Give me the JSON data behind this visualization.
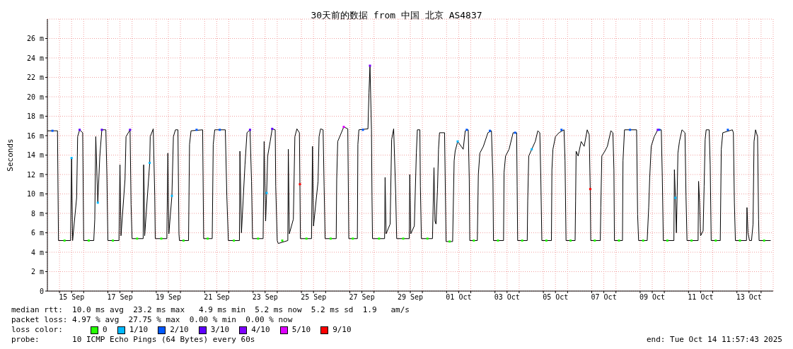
{
  "chart_data": {
    "type": "line",
    "title": "30天前的数据 from 中国 北京 AS4837",
    "ylabel": "Seconds",
    "legend_title": "loss color:",
    "legend": "bottom left",
    "grid": true,
    "xlim": [
      "2025-09-14T12:00",
      "2025-10-14T12:00"
    ],
    "xticks": [
      {
        "value": "2025-09-15T00:00",
        "label": null
      },
      {
        "value": "2025-09-15T12:00",
        "label": "15 Sep"
      },
      {
        "value": "2025-09-16T00:00",
        "label": null
      },
      {
        "value": "2025-09-17T00:00",
        "label": null
      },
      {
        "value": "2025-09-17T12:00",
        "label": "17 Sep"
      },
      {
        "value": "2025-09-18T00:00",
        "label": null
      },
      {
        "value": "2025-09-19T00:00",
        "label": null
      },
      {
        "value": "2025-09-19T12:00",
        "label": "19 Sep"
      },
      {
        "value": "2025-09-20T00:00",
        "label": null
      },
      {
        "value": "2025-09-21T00:00",
        "label": null
      },
      {
        "value": "2025-09-21T12:00",
        "label": "21 Sep"
      },
      {
        "value": "2025-09-22T00:00",
        "label": null
      },
      {
        "value": "2025-09-23T00:00",
        "label": null
      },
      {
        "value": "2025-09-23T12:00",
        "label": "23 Sep"
      },
      {
        "value": "2025-09-24T00:00",
        "label": null
      },
      {
        "value": "2025-09-25T00:00",
        "label": null
      },
      {
        "value": "2025-09-25T12:00",
        "label": "25 Sep"
      },
      {
        "value": "2025-09-26T00:00",
        "label": null
      },
      {
        "value": "2025-09-27T00:00",
        "label": null
      },
      {
        "value": "2025-09-27T12:00",
        "label": "27 Sep"
      },
      {
        "value": "2025-09-28T00:00",
        "label": null
      },
      {
        "value": "2025-09-29T00:00",
        "label": null
      },
      {
        "value": "2025-09-29T12:00",
        "label": "29 Sep"
      },
      {
        "value": "2025-09-30T00:00",
        "label": null
      },
      {
        "value": "2025-10-01T00:00",
        "label": null
      },
      {
        "value": "2025-10-01T12:00",
        "label": "01 Oct"
      },
      {
        "value": "2025-10-02T00:00",
        "label": null
      },
      {
        "value": "2025-10-03T00:00",
        "label": null
      },
      {
        "value": "2025-10-03T12:00",
        "label": "03 Oct"
      },
      {
        "value": "2025-10-04T00:00",
        "label": null
      },
      {
        "value": "2025-10-05T00:00",
        "label": null
      },
      {
        "value": "2025-10-05T12:00",
        "label": "05 Oct"
      },
      {
        "value": "2025-10-06T00:00",
        "label": null
      },
      {
        "value": "2025-10-07T00:00",
        "label": null
      },
      {
        "value": "2025-10-07T12:00",
        "label": "07 Oct"
      },
      {
        "value": "2025-10-08T00:00",
        "label": null
      },
      {
        "value": "2025-10-09T00:00",
        "label": null
      },
      {
        "value": "2025-10-09T12:00",
        "label": "09 Oct"
      },
      {
        "value": "2025-10-10T00:00",
        "label": null
      },
      {
        "value": "2025-10-11T00:00",
        "label": null
      },
      {
        "value": "2025-10-11T12:00",
        "label": "11 Oct"
      },
      {
        "value": "2025-10-12T00:00",
        "label": null
      },
      {
        "value": "2025-10-13T00:00",
        "label": null
      },
      {
        "value": "2025-10-13T12:00",
        "label": "13 Oct"
      },
      {
        "value": "2025-10-14T00:00",
        "label": null
      }
    ],
    "ylim": [
      0,
      28
    ],
    "yticks": [
      0,
      {
        "value": 2,
        "label": "2 m"
      },
      {
        "value": 4,
        "label": "4 m"
      },
      {
        "value": 6,
        "label": "6 m"
      },
      {
        "value": 8,
        "label": "8 m"
      },
      {
        "value": 10,
        "label": "10 m"
      },
      {
        "value": 12,
        "label": "12 m"
      },
      {
        "value": 14,
        "label": "14 m"
      },
      {
        "value": 16,
        "label": "16 m"
      },
      {
        "value": 18,
        "label": "18 m"
      },
      {
        "value": 20,
        "label": "20 m"
      },
      {
        "value": 22,
        "label": "22 m"
      },
      {
        "value": 24,
        "label": "24 m"
      },
      {
        "value": 26,
        "label": "26 m"
      }
    ],
    "x": [
      "2025-09-14T12:00",
      "2025-09-14T22:00",
      "2025-09-14T23:00",
      "2025-09-15T11:00",
      "2025-09-15T12:00",
      "2025-09-15T13:00",
      "2025-09-15T17:00",
      "2025-09-15T18:00",
      "2025-09-15T20:00",
      "2025-09-15T23:00",
      "2025-09-16T00:00",
      "2025-09-16T10:00",
      "2025-09-16T11:00",
      "2025-09-16T12:00",
      "2025-09-16T14:00",
      "2025-09-16T16:00",
      "2025-09-16T18:00",
      "2025-09-16T22:00",
      "2025-09-16T23:00",
      "2025-09-17T00:00",
      "2025-09-17T11:00",
      "2025-09-17T12:00",
      "2025-09-17T13:00",
      "2025-09-17T17:00",
      "2025-09-17T18:00",
      "2025-09-17T22:00",
      "2025-09-17T23:00",
      "2025-09-18T00:00",
      "2025-09-18T11:00",
      "2025-09-18T11:30",
      "2025-09-18T12:00",
      "2025-09-18T12:30",
      "2025-09-18T17:30",
      "2025-09-18T18:00",
      "2025-09-18T21:00",
      "2025-09-18T22:30",
      "2025-09-18T23:00",
      "2025-09-19T10:30",
      "2025-09-19T11:30",
      "2025-09-19T12:30",
      "2025-09-19T15:30",
      "2025-09-19T17:00",
      "2025-09-19T19:00",
      "2025-09-19T21:30",
      "2025-09-19T22:30",
      "2025-09-19T23:00",
      "2025-09-20T08:00",
      "2025-09-20T09:00",
      "2025-09-20T10:30",
      "2025-09-20T22:00",
      "2025-09-20T23:00",
      "2025-09-21T07:30",
      "2025-09-21T08:30",
      "2025-09-21T10:00",
      "2025-09-21T20:30",
      "2025-09-21T22:00",
      "2025-09-21T23:30",
      "2025-09-22T10:30",
      "2025-09-22T11:00",
      "2025-09-22T12:30",
      "2025-09-22T16:00",
      "2025-09-22T18:00",
      "2025-09-22T21:00",
      "2025-09-22T22:30",
      "2025-09-22T23:30",
      "2025-09-23T10:00",
      "2025-09-23T11:00",
      "2025-09-23T12:30",
      "2025-09-23T13:30",
      "2025-09-23T14:30",
      "2025-09-23T17:00",
      "2025-09-23T19:00",
      "2025-09-23T22:00",
      "2025-09-23T22:30",
      "2025-09-24T00:00",
      "2025-09-24T01:00",
      "2025-09-24T10:30",
      "2025-09-24T11:00",
      "2025-09-24T12:00",
      "2025-09-24T16:00",
      "2025-09-24T17:30",
      "2025-09-24T19:30",
      "2025-09-24T22:00",
      "2025-09-24T22:30",
      "2025-09-24T23:00",
      "2025-09-25T10:00",
      "2025-09-25T11:00",
      "2025-09-25T12:00",
      "2025-09-25T16:30",
      "2025-09-25T17:30",
      "2025-09-25T19:00",
      "2025-09-25T21:30",
      "2025-09-25T22:30",
      "2025-09-25T23:30",
      "2025-09-26T10:30",
      "2025-09-26T11:00",
      "2025-09-26T12:00",
      "2025-09-26T18:00",
      "2025-09-26T22:00",
      "2025-09-26T23:00",
      "2025-09-27T07:30",
      "2025-09-27T08:00",
      "2025-09-27T09:00",
      "2025-09-27T18:00",
      "2025-09-27T19:00",
      "2025-09-27T20:00",
      "2025-09-27T21:00",
      "2025-09-27T21:30",
      "2025-09-27T22:00",
      "2025-09-27T22:30",
      "2025-09-28T10:30",
      "2025-09-28T11:00",
      "2025-09-28T12:00",
      "2025-09-28T16:00",
      "2025-09-28T17:30",
      "2025-09-28T19:30",
      "2025-09-28T21:30",
      "2025-09-28T22:30",
      "2025-09-29T11:00",
      "2025-09-29T11:30",
      "2025-09-29T12:30",
      "2025-09-29T16:00",
      "2025-09-29T18:00",
      "2025-09-29T19:00",
      "2025-09-29T21:30",
      "2025-09-29T22:00",
      "2025-09-29T23:00",
      "2025-09-30T10:00",
      "2025-09-30T11:30",
      "2025-09-30T12:30",
      "2025-09-30T13:30",
      "2025-09-30T15:00",
      "2025-09-30T16:00",
      "2025-09-30T17:00",
      "2025-09-30T22:00",
      "2025-09-30T23:30",
      "2025-10-01T06:00",
      "2025-10-01T07:30",
      "2025-10-01T08:30",
      "2025-10-01T11:00",
      "2025-10-01T14:30",
      "2025-10-01T16:30",
      "2025-10-01T18:30",
      "2025-10-01T21:30",
      "2025-10-01T22:30",
      "2025-10-01T23:00",
      "2025-10-02T06:30",
      "2025-10-02T07:30",
      "2025-10-02T09:00",
      "2025-10-02T12:30",
      "2025-10-02T17:00",
      "2025-10-02T20:30",
      "2025-10-02T22:00",
      "2025-10-02T22:30",
      "2025-10-03T08:30",
      "2025-10-03T09:00",
      "2025-10-03T10:30",
      "2025-10-03T14:00",
      "2025-10-03T18:00",
      "2025-10-03T21:30",
      "2025-10-03T22:00",
      "2025-10-03T22:30",
      "2025-10-04T08:00",
      "2025-10-04T08:30",
      "2025-10-04T09:30",
      "2025-10-04T12:30",
      "2025-10-04T16:00",
      "2025-10-04T18:30",
      "2025-10-04T20:30",
      "2025-10-04T21:30",
      "2025-10-04T22:30",
      "2025-10-05T08:00",
      "2025-10-05T08:30",
      "2025-10-05T09:30",
      "2025-10-05T12:00",
      "2025-10-05T15:30",
      "2025-10-05T20:30",
      "2025-10-05T21:30",
      "2025-10-05T22:30",
      "2025-10-06T07:30",
      "2025-10-06T08:00",
      "2025-10-06T08:30",
      "2025-10-06T10:30",
      "2025-10-06T13:30",
      "2025-10-06T16:30",
      "2025-10-06T19:30",
      "2025-10-06T21:30",
      "2025-10-06T22:30",
      "2025-10-06T23:00",
      "2025-10-07T08:30",
      "2025-10-07T09:00",
      "2025-10-07T10:00",
      "2025-10-07T13:00",
      "2025-10-07T15:30",
      "2025-10-07T19:00",
      "2025-10-07T21:00",
      "2025-10-07T22:00",
      "2025-10-07T22:30",
      "2025-10-08T06:30",
      "2025-10-08T07:00",
      "2025-10-08T08:30",
      "2025-10-08T20:30",
      "2025-10-08T21:30",
      "2025-10-08T22:30",
      "2025-10-09T07:00",
      "2025-10-09T08:30",
      "2025-10-09T09:30",
      "2025-10-09T11:00",
      "2025-10-09T14:00",
      "2025-10-09T17:30",
      "2025-10-09T21:00",
      "2025-10-09T22:00",
      "2025-10-09T23:00",
      "2025-10-10T09:30",
      "2025-10-10T10:00",
      "2025-10-10T11:00",
      "2025-10-10T12:00",
      "2025-10-10T13:30",
      "2025-10-10T15:00",
      "2025-10-10T17:30",
      "2025-10-10T20:30",
      "2025-10-10T21:30",
      "2025-10-10T22:30",
      "2025-10-11T09:30",
      "2025-10-11T10:00",
      "2025-10-11T11:00",
      "2025-10-11T12:00",
      "2025-10-11T14:30",
      "2025-10-11T15:30",
      "2025-10-11T16:30",
      "2025-10-11T17:30",
      "2025-10-11T20:30",
      "2025-10-11T21:30",
      "2025-10-11T22:30",
      "2025-10-12T07:30",
      "2025-10-12T08:30",
      "2025-10-12T10:00",
      "2025-10-12T19:30",
      "2025-10-12T20:30",
      "2025-10-12T21:30",
      "2025-10-12T22:30",
      "2025-10-13T09:30",
      "2025-10-13T10:00",
      "2025-10-13T11:00",
      "2025-10-13T12:30",
      "2025-10-13T14:30",
      "2025-10-13T16:00",
      "2025-10-13T17:00",
      "2025-10-13T18:30",
      "2025-10-13T20:30",
      "2025-10-13T21:30",
      "2025-10-13T22:00",
      "2025-10-14T09:30"
    ],
    "series": [
      {
        "color": "#000000",
        "values": [
          16.5,
          16.5,
          5.2,
          5.2,
          13.7,
          5.2,
          9.6,
          15.9,
          16.6,
          16.3,
          5.2,
          5.2,
          7.4,
          15.9,
          9.1,
          13.9,
          16.6,
          16.6,
          12,
          5.2,
          5.2,
          13,
          5.7,
          11.5,
          15.9,
          16.6,
          8.9,
          5.4,
          5.4,
          13,
          10.3,
          5.7,
          13.2,
          15.9,
          16.7,
          9.8,
          5.4,
          5.4,
          14.2,
          5.9,
          9.8,
          15.9,
          16.6,
          16.6,
          5.9,
          5.2,
          5.2,
          15.1,
          16.5,
          16.6,
          5.4,
          5.4,
          15.1,
          16.6,
          16.6,
          9.8,
          5.2,
          5.2,
          14.4,
          6,
          13,
          16.3,
          16.6,
          11.3,
          5.4,
          5.4,
          15.4,
          7.2,
          10.1,
          13.9,
          15.4,
          16.7,
          16.6,
          10.8,
          5.2,
          4.9,
          5.2,
          14.6,
          5.9,
          7.4,
          15.9,
          16.7,
          16.3,
          11,
          5.4,
          5.4,
          14.9,
          6.7,
          11.3,
          15.9,
          16.7,
          16.6,
          10.8,
          5.4,
          5.4,
          11.5,
          15.4,
          16.9,
          16.7,
          5.4,
          5.4,
          15.1,
          16.6,
          16.7,
          20.4,
          23.2,
          18.7,
          16.6,
          9.8,
          5.4,
          5.4,
          11.7,
          5.9,
          6.9,
          15.6,
          16.7,
          10.1,
          5.4,
          5.4,
          12,
          5.9,
          6.7,
          14.2,
          16.6,
          16.6,
          10.8,
          5.4,
          5.4,
          12.7,
          7.2,
          6.9,
          10.5,
          14.6,
          16.3,
          16.3,
          5.1,
          5.1,
          13.4,
          14.4,
          15.4,
          14.9,
          14.6,
          16.5,
          16.6,
          11.5,
          5.2,
          5.2,
          12,
          14.2,
          14.9,
          16.3,
          16.5,
          11.5,
          5.2,
          5.2,
          12.2,
          13.9,
          14.6,
          16.3,
          16.3,
          10.8,
          5.2,
          5.2,
          9.3,
          13.9,
          14.6,
          15.4,
          16.5,
          16.3,
          11.5,
          5.2,
          5.2,
          12.5,
          14.6,
          15.9,
          16.3,
          16.6,
          13.4,
          5.2,
          5.2,
          9.3,
          14.4,
          13.9,
          15.4,
          14.9,
          16.6,
          16.1,
          10.5,
          5.2,
          5.2,
          8.6,
          13.9,
          14.4,
          14.9,
          16.5,
          16.3,
          12.5,
          5.2,
          5.2,
          13.4,
          16.6,
          16.6,
          7.9,
          5.2,
          5.2,
          8.6,
          11.7,
          14.9,
          15.9,
          16.6,
          16.6,
          11.7,
          5.2,
          5.2,
          12.5,
          9.6,
          6,
          14.2,
          15.4,
          16.6,
          16.3,
          9.8,
          5.2,
          5.2,
          11.3,
          9.1,
          5.7,
          6.2,
          10.8,
          15.6,
          16.6,
          16.6,
          13,
          5.2,
          5.2,
          14.6,
          16.3,
          16.6,
          16.3,
          9.1,
          5.2,
          5.2,
          8.6,
          6,
          5.2,
          5.2,
          6.9,
          15.4,
          16.6,
          15.9,
          7.4,
          5.2,
          5.2
        ]
      },
      {
        "name": "0",
        "type": "scatter",
        "marker": "square",
        "color": "#26ff00",
        "x": [
          "2025-09-15T05:00",
          "2025-09-16T05:00",
          "2025-09-17T05:00",
          "2025-09-18T05:00",
          "2025-09-19T05:00",
          "2025-09-20T03:00",
          "2025-09-21T03:00",
          "2025-09-22T05:00",
          "2025-09-23T05:00",
          "2025-09-24T05:00",
          "2025-09-25T05:00",
          "2025-09-26T05:00",
          "2025-09-27T03:00",
          "2025-09-28T05:00",
          "2025-09-29T05:00",
          "2025-09-30T05:00",
          "2025-10-01T03:00",
          "2025-10-02T03:00",
          "2025-10-03T03:00",
          "2025-10-04T03:00",
          "2025-10-05T03:00",
          "2025-10-06T03:00",
          "2025-10-07T03:00",
          "2025-10-08T03:00",
          "2025-10-09T03:00",
          "2025-10-10T03:00",
          "2025-10-11T03:00",
          "2025-10-12T03:00",
          "2025-10-13T03:00",
          "2025-10-14T03:00"
        ],
        "values": [
          5.2,
          5.2,
          5.2,
          5.4,
          5.4,
          5.2,
          5.4,
          5.2,
          5.4,
          5.2,
          5.4,
          5.4,
          5.4,
          5.4,
          5.4,
          5.4,
          5.1,
          5.2,
          5.2,
          5.2,
          5.2,
          5.2,
          5.2,
          5.2,
          5.2,
          5.2,
          5.2,
          5.2,
          5.2,
          5.2
        ]
      },
      {
        "name": "1/10",
        "type": "scatter",
        "marker": "square",
        "color": "#00b8ff",
        "x": [
          "2025-09-15T12:00",
          "2025-09-16T14:00",
          "2025-09-18T17:30",
          "2025-09-19T15:30",
          "2025-09-23T13:30",
          "2025-10-01T11:00",
          "2025-10-04T12:30",
          "2025-10-10T11:00"
        ],
        "values": [
          13.7,
          9.1,
          13.2,
          9.8,
          10.1,
          15.4,
          14.6,
          9.6
        ]
      },
      {
        "name": "2/10",
        "type": "scatter",
        "marker": "square",
        "color": "#0059ff",
        "x": [
          "2025-09-14T17:00",
          "2025-09-20T16:00",
          "2025-09-21T15:00",
          "2025-09-27T13:00",
          "2025-10-01T20:00",
          "2025-10-02T19:00",
          "2025-10-03T20:00",
          "2025-10-05T18:00",
          "2025-10-08T14:00",
          "2025-10-09T19:00",
          "2025-10-12T15:00"
        ],
        "values": [
          16.5,
          16.6,
          16.6,
          16.6,
          16.6,
          16.5,
          16.3,
          16.6,
          16.6,
          16.6,
          16.6
        ]
      },
      {
        "name": "3/10",
        "type": "scatter",
        "marker": "square",
        "color": "#5e00ff",
        "x": [
          "2025-09-15T20:00",
          "2025-09-16T18:00",
          "2025-09-17T22:00",
          "2025-09-22T21:00",
          "2025-09-23T19:00"
        ],
        "values": [
          16.6,
          16.6,
          16.6,
          16.6,
          16.7
        ]
      },
      {
        "name": "4/10",
        "type": "scatter",
        "marker": "square",
        "color": "#7e00ff",
        "x": [
          "2025-09-27T20:00",
          "2025-10-09T17:30"
        ],
        "values": [
          23.2,
          16.6
        ]
      },
      {
        "name": "5/10",
        "type": "scatter",
        "marker": "square",
        "color": "#dd00ff",
        "x": [
          "2025-09-26T18:00"
        ],
        "values": [
          16.9
        ]
      },
      {
        "name": "9/10",
        "type": "scatter",
        "marker": "square",
        "color": "#ff0000",
        "x": [
          "2025-09-24T22:30",
          "2025-10-06T22:30"
        ],
        "values": [
          11,
          10.5
        ]
      }
    ],
    "annotations": [
      "median rtt:  10.0 ms avg  23.2 ms max   4.9 ms min  5.2 ms now  5.2 ms sd  1.9   am/s",
      "packet loss: 4.97 % avg  27.75 % max  0.00 % min  0.00 % now",
      "probe:       10 ICMP Echo Pings (64 Bytes) every 60s",
      "end: Tue Oct 14 11:57:43 2025"
    ]
  }
}
